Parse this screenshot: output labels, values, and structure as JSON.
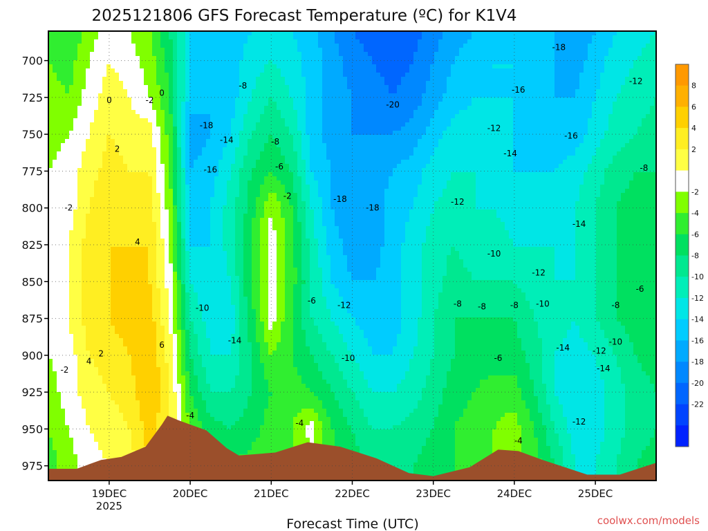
{
  "chart_data": {
    "type": "heatmap",
    "title": "2025121806 GFS Forecast Temperature (ºC) for K1V4",
    "xlabel": "Forecast Time (UTC)",
    "ylabel": "",
    "x_range_days": [
      18.25,
      25.75
    ],
    "y_range_hpa": [
      680,
      985
    ],
    "y_ticks": [
      "700",
      "725",
      "750",
      "775",
      "800",
      "825",
      "850",
      "875",
      "900",
      "925",
      "950",
      "975"
    ],
    "x_ticks": [
      {
        "label": "19DEC",
        "sub": "2025",
        "day": 19
      },
      {
        "label": "20DEC",
        "sub": "",
        "day": 20
      },
      {
        "label": "21DEC",
        "sub": "",
        "day": 21
      },
      {
        "label": "22DEC",
        "sub": "",
        "day": 22
      },
      {
        "label": "23DEC",
        "sub": "",
        "day": 23
      },
      {
        "label": "24DEC",
        "sub": "",
        "day": 24
      },
      {
        "label": "25DEC",
        "sub": "",
        "day": 25
      }
    ],
    "colorbar": {
      "levels": [
        10,
        8,
        6,
        4,
        2,
        0,
        -2,
        -4,
        -6,
        -8,
        -10,
        -12,
        -14,
        -16,
        -18,
        -20,
        -22,
        -24
      ],
      "labels": [
        "8",
        "6",
        "4",
        "2",
        "-2",
        "-4",
        "-6",
        "-8",
        "-10",
        "-12",
        "-14",
        "-16",
        "-18",
        "-20",
        "-22"
      ],
      "colors": [
        "#ff9900",
        "#ffb000",
        "#ffd000",
        "#ffee22",
        "#ffff44",
        "#ffffff",
        "#80ff00",
        "#30ee30",
        "#00e060",
        "#00e890",
        "#00eeb8",
        "#00e6e6",
        "#00ccff",
        "#00aaff",
        "#0088ff",
        "#0066ff",
        "#0044ff",
        "#0022ff"
      ]
    },
    "temperature_profile": {
      "levels_hpa": [
        680,
        700,
        725,
        750,
        775,
        800,
        825,
        850,
        875,
        900,
        925,
        950,
        975
      ],
      "days": [
        18.25,
        18.5,
        18.75,
        19.0,
        19.25,
        19.5,
        19.75,
        20.0,
        20.25,
        20.5,
        20.75,
        21.0,
        21.25,
        21.5,
        21.75,
        22.0,
        22.25,
        22.5,
        22.75,
        23.0,
        23.25,
        23.5,
        23.75,
        24.0,
        24.25,
        24.5,
        24.75,
        25.0,
        25.25,
        25.5,
        25.75
      ],
      "values": [
        [
          -5,
          -6,
          -3,
          -1,
          -2,
          -4,
          -8,
          -14,
          -16,
          -15,
          -14,
          -13,
          -14,
          -15,
          -18,
          -20,
          -21,
          -22,
          -21,
          -19,
          -17,
          -16,
          -15,
          -14,
          -15,
          -16,
          -17,
          -16,
          -14,
          -13,
          -12
        ],
        [
          -4,
          -5,
          -2,
          0,
          -1,
          -3,
          -7,
          -14,
          -16,
          -15,
          -13,
          -12,
          -13,
          -15,
          -17,
          -19,
          -20,
          -21,
          -20,
          -18,
          -16,
          -15,
          -14,
          -14,
          -15,
          -16,
          -17,
          -15,
          -13,
          -12,
          -11
        ],
        [
          -3,
          -4,
          -1,
          1,
          0,
          -2,
          -6,
          -15,
          -16,
          -15,
          -12,
          -10,
          -12,
          -15,
          -17,
          -18,
          -19,
          -20,
          -19,
          -17,
          -15,
          -14,
          -14,
          -14,
          -15,
          -16,
          -16,
          -14,
          -12,
          -11,
          -10
        ],
        [
          -3,
          -2,
          0,
          2,
          1,
          1,
          -5,
          -17,
          -16,
          -14,
          -10,
          -8,
          -10,
          -15,
          -17,
          -18,
          -18,
          -18,
          -17,
          -15,
          -13,
          -13,
          -13,
          -14,
          -15,
          -15,
          -15,
          -13,
          -11,
          -10,
          -9
        ],
        [
          -2,
          -1,
          1,
          3,
          2,
          2,
          -4,
          -16,
          -15,
          -12,
          -8,
          -6,
          -8,
          -14,
          -16,
          -17,
          -17,
          -16,
          -15,
          -13,
          -12,
          -12,
          -13,
          -14,
          -14,
          -14,
          -13,
          -11,
          -9,
          -8,
          -8
        ],
        [
          -2,
          -1,
          2,
          4,
          3,
          3,
          -3,
          -15,
          -14,
          -11,
          -7,
          -2,
          -6,
          -12,
          -16,
          -18,
          -17,
          -15,
          -14,
          -12,
          -11,
          -12,
          -12,
          -13,
          -13,
          -13,
          -12,
          -10,
          -8,
          -7,
          -7
        ],
        [
          -1,
          0,
          3,
          4,
          4,
          4,
          -2,
          -14,
          -14,
          -11,
          -6,
          -1,
          -5,
          -11,
          -15,
          -17,
          -17,
          -15,
          -13,
          -11,
          -10,
          -11,
          -11,
          -12,
          -12,
          -12,
          -12,
          -10,
          -8,
          -7,
          -6
        ],
        [
          -1,
          0,
          3,
          4,
          5,
          4,
          -1,
          -12,
          -14,
          -12,
          -6,
          -1,
          -5,
          -10,
          -14,
          -16,
          -16,
          -15,
          -13,
          -11,
          -9,
          -10,
          -10,
          -10,
          -11,
          -12,
          -12,
          -10,
          -8,
          -7,
          -6
        ],
        [
          -1,
          0,
          3,
          4,
          5,
          5,
          0,
          -10,
          -13,
          -13,
          -7,
          -1,
          -6,
          -10,
          -12,
          -14,
          -15,
          -15,
          -13,
          -10,
          -8,
          -8,
          -8,
          -8,
          -10,
          -11,
          -12,
          -10,
          -8,
          -7,
          -6
        ],
        [
          -2,
          -1,
          2,
          3,
          4,
          6,
          1,
          -8,
          -12,
          -12,
          -8,
          -4,
          -6,
          -8,
          -10,
          -12,
          -14,
          -14,
          -12,
          -10,
          -8,
          -7,
          -7,
          -7,
          -9,
          -12,
          -13,
          -12,
          -10,
          -8,
          -7
        ],
        [
          -3,
          -1,
          1,
          2,
          3,
          6,
          2,
          -6,
          -10,
          -10,
          -8,
          -6,
          -5,
          -6,
          -8,
          -10,
          -12,
          -12,
          -11,
          -9,
          -7,
          -6,
          -5,
          -5,
          -8,
          -12,
          -14,
          -13,
          -11,
          -9,
          -8
        ],
        [
          -4,
          -2,
          0,
          1,
          2,
          5,
          2,
          -4,
          -7,
          -8,
          -7,
          -5,
          -4,
          -1,
          -6,
          -8,
          -10,
          -10,
          -9,
          -8,
          -6,
          -5,
          -4,
          -3,
          -6,
          -10,
          -13,
          -13,
          -11,
          -9,
          -8
        ],
        [
          -5,
          -3,
          -1,
          0,
          1,
          4,
          2,
          -3,
          -5,
          -6,
          -5,
          -4,
          -4,
          -3,
          -5,
          -7,
          -8,
          -9,
          -8,
          -7,
          -6,
          -5,
          -4,
          -3,
          -5,
          -8,
          -12,
          -12,
          -10,
          -8,
          -7
        ]
      ]
    },
    "terrain_hpa": [
      {
        "day": 18.25,
        "p": 977
      },
      {
        "day": 18.6,
        "p": 977
      },
      {
        "day": 18.9,
        "p": 971
      },
      {
        "day": 19.15,
        "p": 969
      },
      {
        "day": 19.45,
        "p": 962
      },
      {
        "day": 19.65,
        "p": 947
      },
      {
        "day": 19.72,
        "p": 941
      },
      {
        "day": 19.85,
        "p": 944
      },
      {
        "day": 20.2,
        "p": 951
      },
      {
        "day": 20.45,
        "p": 963
      },
      {
        "day": 20.6,
        "p": 968
      },
      {
        "day": 21.05,
        "p": 966
      },
      {
        "day": 21.45,
        "p": 959
      },
      {
        "day": 21.85,
        "p": 962
      },
      {
        "day": 22.3,
        "p": 970
      },
      {
        "day": 22.7,
        "p": 980
      },
      {
        "day": 23.0,
        "p": 982
      },
      {
        "day": 23.45,
        "p": 976
      },
      {
        "day": 23.8,
        "p": 964
      },
      {
        "day": 24.05,
        "p": 965
      },
      {
        "day": 24.35,
        "p": 971
      },
      {
        "day": 24.9,
        "p": 981
      },
      {
        "day": 25.3,
        "p": 981
      },
      {
        "day": 25.75,
        "p": 973
      }
    ],
    "contour_labels": [
      {
        "text": "0",
        "day": 19.0,
        "p": 727
      },
      {
        "text": "-2",
        "day": 19.5,
        "p": 727
      },
      {
        "text": "0",
        "day": 19.65,
        "p": 722
      },
      {
        "text": "2",
        "day": 19.1,
        "p": 760
      },
      {
        "text": "-2",
        "day": 18.5,
        "p": 800
      },
      {
        "text": "4",
        "day": 19.35,
        "p": 823
      },
      {
        "text": "6",
        "day": 19.65,
        "p": 893
      },
      {
        "text": "4",
        "day": 18.75,
        "p": 904
      },
      {
        "text": "2",
        "day": 18.9,
        "p": 899
      },
      {
        "text": "-2",
        "day": 18.45,
        "p": 910
      },
      {
        "text": "-18",
        "day": 20.2,
        "p": 744
      },
      {
        "text": "-14",
        "day": 20.45,
        "p": 754
      },
      {
        "text": "-16",
        "day": 20.25,
        "p": 774
      },
      {
        "text": "-10",
        "day": 20.15,
        "p": 868
      },
      {
        "text": "-14",
        "day": 20.55,
        "p": 890
      },
      {
        "text": "-8",
        "day": 20.65,
        "p": 717
      },
      {
        "text": "-8",
        "day": 21.05,
        "p": 755
      },
      {
        "text": "-6",
        "day": 21.1,
        "p": 772
      },
      {
        "text": "-2",
        "day": 21.2,
        "p": 792
      },
      {
        "text": "-6",
        "day": 21.5,
        "p": 863
      },
      {
        "text": "-4",
        "day": 21.35,
        "p": 946
      },
      {
        "text": "-4",
        "day": 20.0,
        "p": 941
      },
      {
        "text": "-12",
        "day": 21.9,
        "p": 866
      },
      {
        "text": "-10",
        "day": 21.95,
        "p": 902
      },
      {
        "text": "-18",
        "day": 21.85,
        "p": 794
      },
      {
        "text": "-18",
        "day": 22.25,
        "p": 800
      },
      {
        "text": "-20",
        "day": 22.5,
        "p": 730
      },
      {
        "text": "-18",
        "day": 24.55,
        "p": 691
      },
      {
        "text": "-16",
        "day": 24.05,
        "p": 720
      },
      {
        "text": "-12",
        "day": 25.5,
        "p": 714
      },
      {
        "text": "-12",
        "day": 23.75,
        "p": 746
      },
      {
        "text": "-16",
        "day": 24.7,
        "p": 751
      },
      {
        "text": "-14",
        "day": 23.95,
        "p": 763
      },
      {
        "text": "-8",
        "day": 25.6,
        "p": 773
      },
      {
        "text": "-12",
        "day": 23.3,
        "p": 796
      },
      {
        "text": "-14",
        "day": 24.8,
        "p": 811
      },
      {
        "text": "-10",
        "day": 23.75,
        "p": 831
      },
      {
        "text": "-12",
        "day": 24.3,
        "p": 844
      },
      {
        "text": "-6",
        "day": 25.55,
        "p": 855
      },
      {
        "text": "-8",
        "day": 23.3,
        "p": 865
      },
      {
        "text": "-8",
        "day": 23.6,
        "p": 867
      },
      {
        "text": "-8",
        "day": 24.0,
        "p": 866
      },
      {
        "text": "-10",
        "day": 24.35,
        "p": 865
      },
      {
        "text": "-8",
        "day": 25.25,
        "p": 866
      },
      {
        "text": "-10",
        "day": 25.25,
        "p": 891
      },
      {
        "text": "-12",
        "day": 25.05,
        "p": 897
      },
      {
        "text": "-14",
        "day": 24.6,
        "p": 895
      },
      {
        "text": "-6",
        "day": 23.8,
        "p": 902
      },
      {
        "text": "-14",
        "day": 25.1,
        "p": 909
      },
      {
        "text": "-12",
        "day": 24.8,
        "p": 945
      },
      {
        "text": "-4",
        "day": 24.05,
        "p": 958
      }
    ],
    "credit": "coolwx.com/models"
  }
}
